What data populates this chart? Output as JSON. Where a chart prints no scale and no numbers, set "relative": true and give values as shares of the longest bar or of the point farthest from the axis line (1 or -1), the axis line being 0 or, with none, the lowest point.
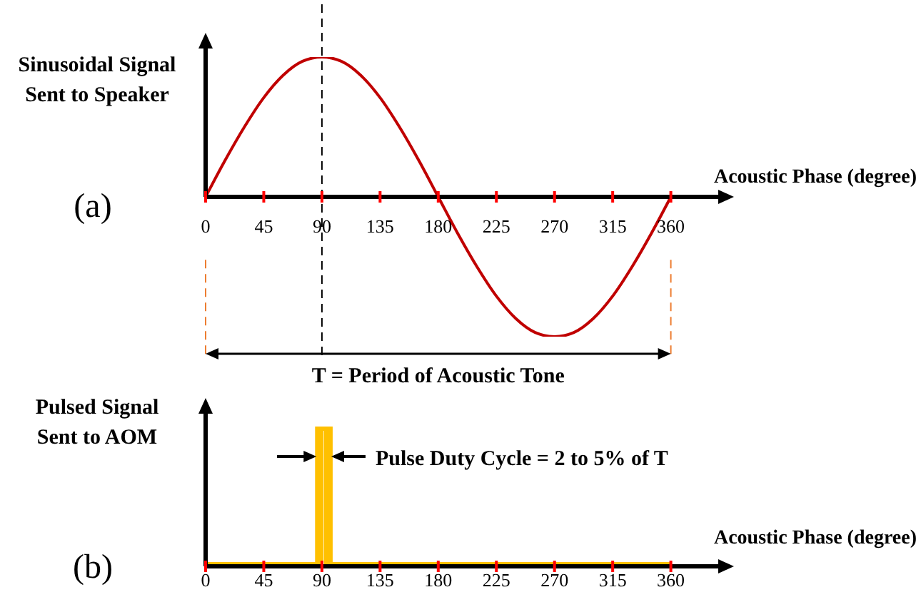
{
  "chart_data": [
    {
      "type": "line",
      "relative": true,
      "ylabel": "Sinusoidal Signal\nSent to Speaker",
      "xlabel": "Acoustic Phase (degree)",
      "tick_labels": "x",
      "xlim": [
        0,
        400
      ],
      "xticks": [
        0,
        45,
        90,
        135,
        180,
        225,
        270,
        315,
        360
      ],
      "color": "#c00000",
      "x": [
        0,
        15,
        30,
        45,
        60,
        75,
        90,
        105,
        120,
        135,
        150,
        165,
        180,
        195,
        210,
        225,
        240,
        255,
        270,
        285,
        300,
        315,
        330,
        345,
        360
      ],
      "values": [
        0,
        0.26,
        0.5,
        0.71,
        0.87,
        0.97,
        1,
        0.97,
        0.87,
        0.71,
        0.5,
        0.26,
        0,
        -0.26,
        -0.5,
        -0.71,
        -0.87,
        -0.97,
        -1,
        -0.97,
        -0.87,
        -0.71,
        -0.5,
        -0.26,
        0
      ],
      "ref_lines": [
        {
          "axis": "x",
          "value": 90,
          "color": "#000000",
          "line_style": "dashed"
        },
        {
          "axis": "x",
          "value": 0,
          "color": "#ed7d31",
          "line_style": "dashed"
        },
        {
          "axis": "x",
          "value": 360,
          "color": "#ed7d31",
          "line_style": "dashed"
        }
      ],
      "annotations": [
        "(a)",
        "T = Period of Acoustic Tone"
      ]
    },
    {
      "type": "line",
      "relative": true,
      "ylabel": "Pulsed Signal\nSent to AOM",
      "xlabel": "Acoustic Phase (degree)",
      "tick_labels": "x",
      "xlim": [
        0,
        400
      ],
      "xticks": [
        0,
        45,
        90,
        135,
        180,
        225,
        270,
        315,
        360
      ],
      "color": "#ffc000",
      "x": [
        0,
        88,
        88,
        95,
        95,
        360
      ],
      "values": [
        0,
        0,
        1,
        1,
        0,
        0
      ],
      "annotations": [
        "(b)",
        "Pulse Duty Cycle = 2 to 5% of T"
      ]
    }
  ]
}
